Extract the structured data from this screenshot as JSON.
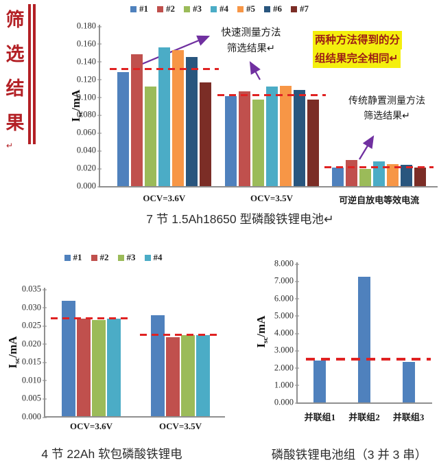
{
  "banner": {
    "text": "筛选结果",
    "chars": [
      "筛",
      "选",
      "结",
      "果"
    ],
    "return_mark": "↵",
    "color": "#b32025"
  },
  "top_section": {
    "caption": "7 节 1.5Ah18650 型磷酸铁锂电池↵",
    "annotations": {
      "fast_line1": "快速测量方法",
      "fast_line2": "筛选结果↵",
      "highlight_line1": "两种方法得到的分",
      "highlight_line2": "组结果完全相同↵",
      "highlight_bg": "#f4ef0e",
      "highlight_color": "#9c1d15",
      "trad_line1": "传统静置测量方法",
      "trad_line2": "筛选结果↵",
      "arrow_color": "#7030a0"
    }
  },
  "bottom_left_section": {
    "caption": "4 节 22Ah 软包磷酸铁锂电"
  },
  "bottom_right_section": {
    "caption": "磷酸铁锂电池组（3 并 3 串）"
  },
  "chart_data": [
    {
      "id": "top",
      "type": "bar",
      "ylabel": "Isc/mA",
      "ylabel_parts": {
        "base": "I",
        "sub": "sc",
        "rest": "/mA"
      },
      "ylim": [
        0,
        0.18
      ],
      "ystep": 0.02,
      "ydecimals": 3,
      "grid": false,
      "legend_position": "top",
      "categories": [
        "OCV=3.6V",
        "OCV=3.5V",
        "可逆自放电等效电流"
      ],
      "series": [
        {
          "name": "#1",
          "color": "#4f81bd",
          "values": [
            0.128,
            0.101,
            0.021
          ]
        },
        {
          "name": "#2",
          "color": "#c0504d",
          "values": [
            0.148,
            0.107,
            0.029
          ]
        },
        {
          "name": "#3",
          "color": "#9bbb59",
          "values": [
            0.112,
            0.097,
            0.019
          ]
        },
        {
          "name": "#4",
          "color": "#4bacc6",
          "values": [
            0.156,
            0.112,
            0.028
          ]
        },
        {
          "name": "#5",
          "color": "#f79646",
          "values": [
            0.153,
            0.113,
            0.025
          ]
        },
        {
          "name": "#6",
          "color": "#29567e",
          "values": [
            0.145,
            0.108,
            0.024
          ]
        },
        {
          "name": "#7",
          "color": "#7b2d26",
          "values": [
            0.117,
            0.097,
            0.021
          ]
        }
      ],
      "thresholds": [
        0.132,
        0.103,
        0.022
      ],
      "threshold_color": "#e02222"
    },
    {
      "id": "bottom_left",
      "type": "bar",
      "ylabel": "Isc/mA",
      "ylabel_parts": {
        "base": "I",
        "sub": "sc",
        "rest": "/mA"
      },
      "ylim": [
        0,
        0.035
      ],
      "ystep": 0.005,
      "ydecimals": 3,
      "grid": false,
      "legend_position": "top",
      "categories": [
        "OCV=3.6V",
        "OCV=3.5V"
      ],
      "series": [
        {
          "name": "#1",
          "color": "#4f81bd",
          "values": [
            0.0316,
            0.0277
          ]
        },
        {
          "name": "#2",
          "color": "#c0504d",
          "values": [
            0.0268,
            0.0216
          ]
        },
        {
          "name": "#3",
          "color": "#9bbb59",
          "values": [
            0.0263,
            0.0222
          ]
        },
        {
          "name": "#4",
          "color": "#4bacc6",
          "values": [
            0.0268,
            0.0222
          ]
        }
      ],
      "thresholds": [
        0.027,
        0.0224
      ],
      "threshold_color": "#e02222"
    },
    {
      "id": "bottom_right",
      "type": "bar",
      "ylabel": "Isc/mA",
      "ylabel_parts": {
        "base": "I",
        "sub": "sc",
        "rest": "/mA"
      },
      "ylim": [
        0,
        8
      ],
      "ystep": 1,
      "ydecimals": 3,
      "grid": false,
      "legend_position": "none",
      "categories": [
        "并联组1",
        "并联组2",
        "并联组3"
      ],
      "series": [
        {
          "name": "",
          "color": "#4f81bd",
          "values": [
            2.4,
            7.25,
            2.35
          ]
        }
      ],
      "threshold_full": 2.5,
      "threshold_color": "#e02222"
    }
  ]
}
